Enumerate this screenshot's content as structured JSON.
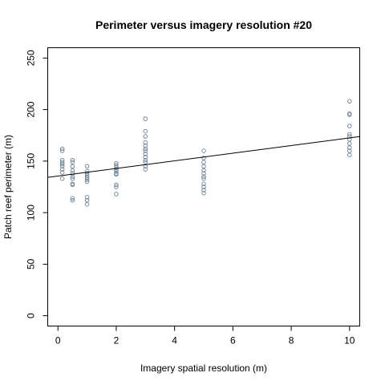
{
  "chart_data": {
    "type": "scatter",
    "title": "Perimeter versus imagery resolution #20",
    "xlabel": "Imagery spatial resolution (m)",
    "ylabel": "Patch reef perimeter (m)",
    "xlim": [
      -0.35,
      10.35
    ],
    "ylim": [
      -10,
      260
    ],
    "xticks": [
      0,
      2,
      4,
      6,
      8,
      10
    ],
    "yticks": [
      0,
      50,
      100,
      150,
      200,
      250
    ],
    "point_color": "#6b7f96",
    "grid": false,
    "series": [
      {
        "points": [
          [
            0.15,
            162
          ],
          [
            0.15,
            160
          ],
          [
            0.15,
            151
          ],
          [
            0.15,
            149
          ],
          [
            0.15,
            147
          ],
          [
            0.15,
            145
          ],
          [
            0.15,
            142
          ],
          [
            0.15,
            139
          ],
          [
            0.15,
            133
          ],
          [
            0.5,
            151
          ],
          [
            0.5,
            149
          ],
          [
            0.5,
            145
          ],
          [
            0.5,
            141
          ],
          [
            0.5,
            138
          ],
          [
            0.5,
            135
          ],
          [
            0.5,
            133
          ],
          [
            0.5,
            128
          ],
          [
            0.5,
            127
          ],
          [
            0.5,
            114
          ],
          [
            0.5,
            112
          ],
          [
            1,
            145
          ],
          [
            1,
            140
          ],
          [
            1,
            138
          ],
          [
            1,
            136
          ],
          [
            1,
            134
          ],
          [
            1,
            132
          ],
          [
            1,
            130
          ],
          [
            1,
            115
          ],
          [
            1,
            112
          ],
          [
            1,
            108
          ],
          [
            2,
            148
          ],
          [
            2,
            146
          ],
          [
            2,
            144
          ],
          [
            2,
            142
          ],
          [
            2,
            140
          ],
          [
            2,
            138
          ],
          [
            2,
            137
          ],
          [
            2,
            127
          ],
          [
            2,
            125
          ],
          [
            2,
            118
          ],
          [
            3,
            191
          ],
          [
            3,
            179
          ],
          [
            3,
            174
          ],
          [
            3,
            168
          ],
          [
            3,
            165
          ],
          [
            3,
            162
          ],
          [
            3,
            160
          ],
          [
            3,
            157
          ],
          [
            3,
            154
          ],
          [
            3,
            151
          ],
          [
            3,
            149
          ],
          [
            3,
            145
          ],
          [
            3,
            142
          ],
          [
            5,
            160
          ],
          [
            5,
            153
          ],
          [
            5,
            149
          ],
          [
            5,
            145
          ],
          [
            5,
            141
          ],
          [
            5,
            138
          ],
          [
            5,
            135
          ],
          [
            5,
            133
          ],
          [
            5,
            128
          ],
          [
            5,
            125
          ],
          [
            5,
            122
          ],
          [
            5,
            119
          ],
          [
            10,
            208
          ],
          [
            10,
            196
          ],
          [
            10,
            195
          ],
          [
            10,
            184
          ],
          [
            10,
            176
          ],
          [
            10,
            174
          ],
          [
            10,
            171
          ],
          [
            10,
            167
          ],
          [
            10,
            163
          ],
          [
            10,
            160
          ],
          [
            10,
            156
          ]
        ]
      }
    ],
    "fit_line": {
      "intercept": 135.5,
      "slope": 3.7
    }
  }
}
